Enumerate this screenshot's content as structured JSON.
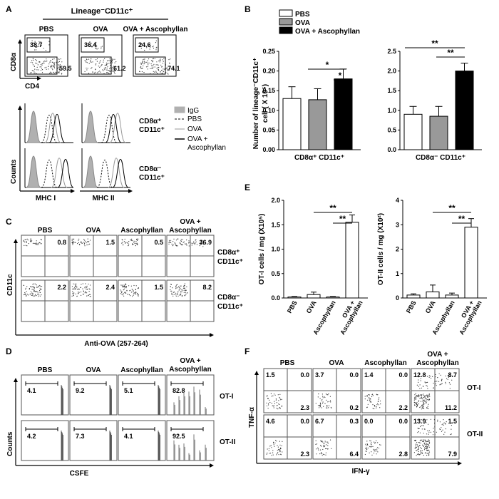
{
  "panels": {
    "A": {
      "letter": "A",
      "header": "Lineage⁻CD11c⁺",
      "groups": [
        "PBS",
        "OVA",
        "OVA + Ascophyllan"
      ],
      "axis_y": "CD8α",
      "axis_x": "CD4",
      "gate_values": [
        {
          "top": "38.7",
          "bottom": "59.5"
        },
        {
          "top": "36.4",
          "bottom": "61.2"
        },
        {
          "top": "24.6",
          "bottom": "74.1"
        }
      ],
      "hist_ylabel": "Counts",
      "hist_xlabels": [
        "MHC I",
        "MHC II"
      ],
      "hist_rows": [
        {
          "l1": "CD8α⁺",
          "l2": "CD11c⁺"
        },
        {
          "l1": "CD8α⁻",
          "l2": "CD11c⁺"
        }
      ],
      "legend": [
        {
          "label": "IgG",
          "style": "filled",
          "color": "#b0b0b0"
        },
        {
          "label": "PBS",
          "style": "dashed",
          "color": "#000000"
        },
        {
          "label": "OVA",
          "style": "solid",
          "color": "#9a9a9a"
        },
        {
          "label": "OVA +",
          "label2": "Ascophyllan",
          "style": "solid",
          "color": "#000000"
        }
      ]
    },
    "B": {
      "letter": "B",
      "legend": [
        {
          "label": "PBS",
          "color": "#ffffff"
        },
        {
          "label": "OVA",
          "color": "#999999"
        },
        {
          "label": "OVA + Ascophyllan",
          "color": "#000000"
        }
      ],
      "ylabel_l1": "Number of lineage⁻CD11c⁺",
      "ylabel_l2": "cell ( X 10⁵)",
      "sig_left": [
        "*",
        "*"
      ],
      "sig_right": [
        "**",
        "**"
      ]
    },
    "C": {
      "letter": "C",
      "groups": [
        "PBS",
        "OVA",
        "Ascophyllan",
        "OVA +",
        "Ascophyllan"
      ],
      "group_labels": [
        "PBS",
        "OVA",
        "Ascophyllan",
        "OVA + Ascophyllan"
      ],
      "axis_y": "CD11c",
      "axis_x": "Anti-OVA (257-264)",
      "row1_values": [
        "0.8",
        "1.5",
        "0.5",
        "36.9"
      ],
      "row2_values": [
        "2.2",
        "2.4",
        "1.5",
        "8.2"
      ],
      "rows": [
        {
          "l1": "CD8α⁺",
          "l2": "CD11c⁺"
        },
        {
          "l1": "CD8α⁻",
          "l2": "CD11c⁺"
        }
      ]
    },
    "D": {
      "letter": "D",
      "axis_y": "Counts",
      "axis_x": "CSFE",
      "rows": [
        "OT-I",
        "OT-II"
      ],
      "row1_values": [
        "4.1",
        "9.2",
        "5.1",
        "82.8"
      ],
      "row2_values": [
        "4.2",
        "7.3",
        "4.1",
        "92.5"
      ]
    },
    "E": {
      "letter": "E",
      "sig_left": [
        "**",
        "**"
      ],
      "sig_right": [
        "**",
        "**"
      ]
    },
    "F": {
      "letter": "F",
      "axis_y": "TNF-α",
      "axis_x": "IFN-γ",
      "rows": [
        "OT-I",
        "OT-II"
      ],
      "row1_quads": [
        {
          "tl": "1.5",
          "tr": "0.0",
          "br": "2.3"
        },
        {
          "tl": "3.7",
          "tr": "0.0",
          "br": "0.2"
        },
        {
          "tl": "1.4",
          "tr": "0.0",
          "br": "2.2"
        },
        {
          "tl": "12.8",
          "tr": "8.7",
          "br": "11.2"
        }
      ],
      "row2_quads": [
        {
          "tl": "4.6",
          "tr": "0.0",
          "br": "2.3"
        },
        {
          "tl": "6.7",
          "tr": "0.3",
          "br": "6.4"
        },
        {
          "tl": "0.0",
          "tr": "0.0",
          "br": "2.8"
        },
        {
          "tl": "13.9",
          "tr": "1.5",
          "br": "7.9"
        }
      ]
    }
  },
  "chart_data": [
    {
      "type": "bar",
      "panel": "B",
      "categories": [
        "CD8α⁺ CD11c⁺"
      ],
      "series": [
        {
          "name": "PBS",
          "values": [
            0.13
          ],
          "errors": [
            0.03
          ]
        },
        {
          "name": "OVA",
          "values": [
            0.127
          ],
          "errors": [
            0.028
          ]
        },
        {
          "name": "OVA + Ascophyllan",
          "values": [
            0.18
          ],
          "errors": [
            0.025
          ]
        }
      ],
      "yticks": [
        "0.00",
        "0.05",
        "0.10",
        "0.15",
        "0.20",
        "0.25"
      ],
      "ylim": [
        0,
        0.25
      ]
    },
    {
      "type": "bar",
      "panel": "B",
      "categories": [
        "CD8α⁻ CD11c⁺"
      ],
      "series": [
        {
          "name": "PBS",
          "values": [
            0.9
          ],
          "errors": [
            0.2
          ]
        },
        {
          "name": "OVA",
          "values": [
            0.85
          ],
          "errors": [
            0.25
          ]
        },
        {
          "name": "OVA + Ascophyllan",
          "values": [
            2.0
          ],
          "errors": [
            0.2
          ]
        }
      ],
      "yticks": [
        "0.0",
        "0.5",
        "1.0",
        "1.5",
        "2.0",
        "2.5"
      ],
      "ylim": [
        0,
        2.5
      ]
    },
    {
      "type": "bar",
      "panel": "E",
      "ylabel": "OT-I cells / mg (X10⁵)",
      "categories": [
        "PBS",
        "OVA",
        "Ascophyllan",
        "OVA + Ascophyllan"
      ],
      "values": [
        0.02,
        0.07,
        0.02,
        1.55
      ],
      "errors": [
        0.01,
        0.05,
        0.01,
        0.15
      ],
      "yticks": [
        "0.0",
        "0.5",
        "1.0",
        "1.5",
        "2.0"
      ],
      "ylim": [
        0,
        2.0
      ]
    },
    {
      "type": "bar",
      "panel": "E",
      "ylabel": "OT-II cells / mg (X10²)",
      "categories": [
        "PBS",
        "OVA",
        "Ascophyllan",
        "OVA + Ascophyllan"
      ],
      "values": [
        0.12,
        0.25,
        0.12,
        2.9
      ],
      "errors": [
        0.05,
        0.28,
        0.08,
        0.35
      ],
      "yticks": [
        "0",
        "1",
        "2",
        "3",
        "4"
      ],
      "ylim": [
        0,
        4
      ]
    }
  ]
}
